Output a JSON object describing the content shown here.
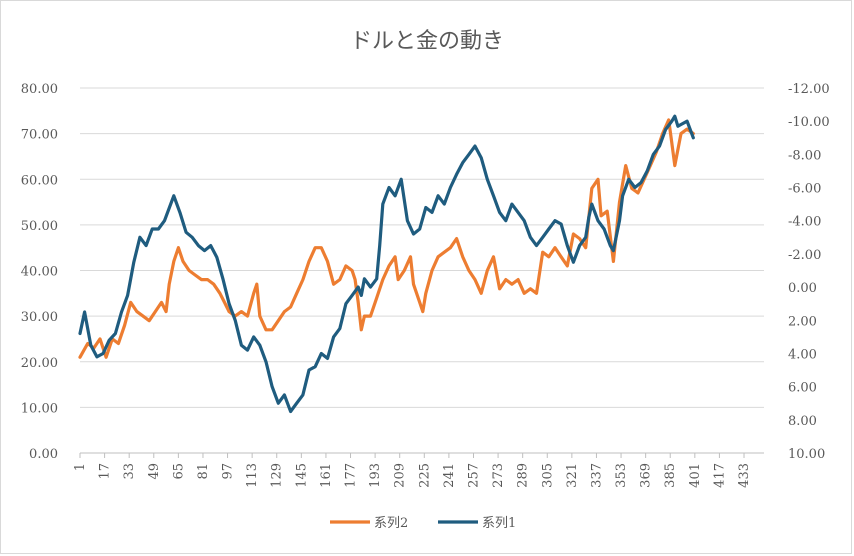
{
  "chart_data": {
    "type": "line",
    "title": "ドルと金の動き",
    "xlabel": "",
    "ylabel": "",
    "x_ticks": [
      "1",
      "17",
      "33",
      "49",
      "65",
      "81",
      "97",
      "113",
      "129",
      "145",
      "161",
      "177",
      "193",
      "209",
      "225",
      "241",
      "257",
      "273",
      "289",
      "305",
      "321",
      "337",
      "353",
      "369",
      "385",
      "401",
      "417",
      "433"
    ],
    "x_range": [
      1,
      446
    ],
    "left_axis": {
      "min": 0,
      "max": 80,
      "step": 10,
      "ticks": [
        "0.00",
        "10.00",
        "20.00",
        "30.00",
        "40.00",
        "50.00",
        "60.00",
        "70.00",
        "80.00"
      ]
    },
    "right_axis": {
      "reversed": true,
      "min": -12,
      "max": 10,
      "step": 2,
      "ticks": [
        "-12.00",
        "-10.00",
        "-8.00",
        "-6.00",
        "-4.00",
        "-2.00",
        "0.00",
        "2.00",
        "4.00",
        "6.00",
        "8.00",
        "10.00"
      ]
    },
    "grid": true,
    "legend_position": "bottom",
    "series": [
      {
        "name": "系列2",
        "axis": "left",
        "color": "#ED7D31",
        "points": [
          [
            1,
            21
          ],
          [
            6,
            24
          ],
          [
            10,
            23
          ],
          [
            14,
            25
          ],
          [
            18,
            21
          ],
          [
            22,
            25
          ],
          [
            26,
            24
          ],
          [
            30,
            28
          ],
          [
            34,
            33
          ],
          [
            38,
            31
          ],
          [
            42,
            30
          ],
          [
            46,
            29
          ],
          [
            50,
            31
          ],
          [
            54,
            33
          ],
          [
            57,
            31
          ],
          [
            59,
            37
          ],
          [
            62,
            42
          ],
          [
            65,
            45
          ],
          [
            68,
            42
          ],
          [
            72,
            40
          ],
          [
            76,
            39
          ],
          [
            80,
            38
          ],
          [
            84,
            38
          ],
          [
            88,
            37
          ],
          [
            92,
            35
          ],
          [
            95,
            33
          ],
          [
            98,
            31
          ],
          [
            102,
            30
          ],
          [
            106,
            31
          ],
          [
            110,
            30
          ],
          [
            114,
            35
          ],
          [
            116,
            37
          ],
          [
            118,
            30
          ],
          [
            122,
            27
          ],
          [
            126,
            27
          ],
          [
            130,
            29
          ],
          [
            134,
            31
          ],
          [
            138,
            32
          ],
          [
            142,
            35
          ],
          [
            146,
            38
          ],
          [
            150,
            42
          ],
          [
            154,
            45
          ],
          [
            158,
            45
          ],
          [
            162,
            42
          ],
          [
            166,
            37
          ],
          [
            170,
            38
          ],
          [
            174,
            41
          ],
          [
            178,
            40
          ],
          [
            180,
            38
          ],
          [
            182,
            33
          ],
          [
            184,
            27
          ],
          [
            186,
            30
          ],
          [
            190,
            30
          ],
          [
            194,
            34
          ],
          [
            198,
            38
          ],
          [
            202,
            41
          ],
          [
            206,
            43
          ],
          [
            208,
            38
          ],
          [
            212,
            40
          ],
          [
            216,
            43
          ],
          [
            218,
            37
          ],
          [
            222,
            33
          ],
          [
            224,
            31
          ],
          [
            226,
            35
          ],
          [
            230,
            40
          ],
          [
            234,
            43
          ],
          [
            238,
            44
          ],
          [
            242,
            45
          ],
          [
            246,
            47
          ],
          [
            250,
            43
          ],
          [
            254,
            40
          ],
          [
            258,
            38
          ],
          [
            262,
            35
          ],
          [
            266,
            40
          ],
          [
            270,
            43
          ],
          [
            274,
            36
          ],
          [
            278,
            38
          ],
          [
            282,
            37
          ],
          [
            286,
            38
          ],
          [
            290,
            35
          ],
          [
            294,
            36
          ],
          [
            298,
            35
          ],
          [
            302,
            44
          ],
          [
            306,
            43
          ],
          [
            310,
            45
          ],
          [
            314,
            43
          ],
          [
            318,
            41
          ],
          [
            322,
            48
          ],
          [
            326,
            47
          ],
          [
            330,
            45
          ],
          [
            334,
            58
          ],
          [
            338,
            60
          ],
          [
            340,
            52
          ],
          [
            344,
            53
          ],
          [
            348,
            42
          ],
          [
            352,
            55
          ],
          [
            356,
            63
          ],
          [
            360,
            58
          ],
          [
            364,
            57
          ],
          [
            368,
            60
          ],
          [
            372,
            63
          ],
          [
            376,
            66
          ],
          [
            380,
            70
          ],
          [
            384,
            73
          ],
          [
            386,
            68
          ],
          [
            388,
            63
          ],
          [
            392,
            70
          ],
          [
            396,
            71
          ],
          [
            400,
            70
          ]
        ]
      },
      {
        "name": "系列1",
        "axis": "right",
        "color": "#1F5C7F",
        "points": [
          [
            1,
            2.8
          ],
          [
            4,
            1.5
          ],
          [
            8,
            3.5
          ],
          [
            12,
            4.2
          ],
          [
            16,
            4.0
          ],
          [
            20,
            3.2
          ],
          [
            24,
            2.8
          ],
          [
            28,
            1.5
          ],
          [
            32,
            0.5
          ],
          [
            36,
            -1.5
          ],
          [
            40,
            -3
          ],
          [
            44,
            -2.5
          ],
          [
            48,
            -3.5
          ],
          [
            52,
            -3.5
          ],
          [
            56,
            -4
          ],
          [
            60,
            -5
          ],
          [
            62,
            -5.5
          ],
          [
            66,
            -4.5
          ],
          [
            70,
            -3.3
          ],
          [
            74,
            -3
          ],
          [
            78,
            -2.5
          ],
          [
            82,
            -2.2
          ],
          [
            86,
            -2.5
          ],
          [
            90,
            -1.8
          ],
          [
            94,
            -0.5
          ],
          [
            98,
            1.0
          ],
          [
            102,
            2.0
          ],
          [
            106,
            3.5
          ],
          [
            110,
            3.8
          ],
          [
            114,
            3.0
          ],
          [
            118,
            3.5
          ],
          [
            122,
            4.5
          ],
          [
            126,
            6.0
          ],
          [
            130,
            7.0
          ],
          [
            134,
            6.5
          ],
          [
            138,
            7.5
          ],
          [
            142,
            7.0
          ],
          [
            146,
            6.5
          ],
          [
            150,
            5.0
          ],
          [
            154,
            4.8
          ],
          [
            158,
            4.0
          ],
          [
            162,
            4.3
          ],
          [
            166,
            3.0
          ],
          [
            170,
            2.5
          ],
          [
            174,
            1.0
          ],
          [
            178,
            0.5
          ],
          [
            182,
            0.0
          ],
          [
            184,
            0.5
          ],
          [
            186,
            -0.5
          ],
          [
            190,
            0.0
          ],
          [
            194,
            -0.5
          ],
          [
            196,
            -2.5
          ],
          [
            198,
            -5.0
          ],
          [
            202,
            -6.0
          ],
          [
            206,
            -5.5
          ],
          [
            210,
            -6.5
          ],
          [
            214,
            -4.0
          ],
          [
            218,
            -3.2
          ],
          [
            222,
            -3.5
          ],
          [
            226,
            -4.8
          ],
          [
            230,
            -4.5
          ],
          [
            234,
            -5.5
          ],
          [
            238,
            -5.0
          ],
          [
            242,
            -6.0
          ],
          [
            246,
            -6.8
          ],
          [
            250,
            -7.5
          ],
          [
            254,
            -8.0
          ],
          [
            258,
            -8.5
          ],
          [
            262,
            -7.8
          ],
          [
            266,
            -6.5
          ],
          [
            270,
            -5.5
          ],
          [
            274,
            -4.5
          ],
          [
            278,
            -4.0
          ],
          [
            282,
            -5.0
          ],
          [
            286,
            -4.5
          ],
          [
            290,
            -4.0
          ],
          [
            294,
            -3.0
          ],
          [
            298,
            -2.5
          ],
          [
            302,
            -3.0
          ],
          [
            306,
            -3.5
          ],
          [
            310,
            -4.0
          ],
          [
            314,
            -3.8
          ],
          [
            318,
            -2.5
          ],
          [
            322,
            -1.5
          ],
          [
            326,
            -2.5
          ],
          [
            330,
            -3.0
          ],
          [
            332,
            -4.2
          ],
          [
            334,
            -5.0
          ],
          [
            338,
            -4.0
          ],
          [
            342,
            -3.5
          ],
          [
            346,
            -2.5
          ],
          [
            348,
            -2.2
          ],
          [
            352,
            -4.0
          ],
          [
            354,
            -5.5
          ],
          [
            358,
            -6.5
          ],
          [
            362,
            -6.0
          ],
          [
            366,
            -6.3
          ],
          [
            370,
            -7.0
          ],
          [
            374,
            -8.0
          ],
          [
            378,
            -8.5
          ],
          [
            382,
            -9.5
          ],
          [
            386,
            -10
          ],
          [
            388,
            -10.3
          ],
          [
            390,
            -9.7
          ],
          [
            392,
            -9.8
          ],
          [
            396,
            -10
          ],
          [
            400,
            -9.0
          ]
        ]
      }
    ]
  }
}
